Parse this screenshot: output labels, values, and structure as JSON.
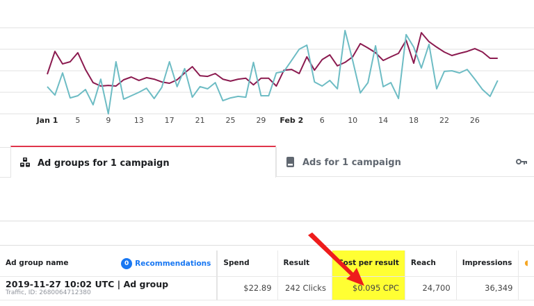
{
  "chart_data": {
    "type": "line",
    "title": "",
    "xlabel": "",
    "ylabel": "",
    "x_tick_labels": [
      "Jan 1",
      "5",
      "9",
      "13",
      "17",
      "21",
      "25",
      "29",
      "Feb 2",
      "6",
      "10",
      "14",
      "18",
      "22",
      "26"
    ],
    "bold_ticks": [
      "Jan 1",
      "Feb 2"
    ],
    "x_start": "Jan 1",
    "days": 60,
    "grid": true,
    "gridline_count": 5,
    "ylim": [
      0,
      4
    ],
    "series": [
      {
        "name": "series-purple",
        "color": "#8b1a4f",
        "values": [
          1.84,
          2.9,
          2.32,
          2.42,
          2.84,
          2.06,
          1.45,
          1.29,
          1.32,
          1.29,
          1.58,
          1.71,
          1.55,
          1.68,
          1.61,
          1.48,
          1.42,
          1.58,
          1.9,
          2.19,
          1.77,
          1.74,
          1.87,
          1.61,
          1.52,
          1.61,
          1.65,
          1.35,
          1.65,
          1.65,
          1.29,
          2.03,
          2.06,
          1.87,
          2.65,
          2.03,
          2.52,
          2.74,
          2.23,
          2.39,
          2.65,
          3.26,
          3.06,
          2.84,
          2.48,
          2.65,
          2.81,
          3.42,
          2.35,
          3.77,
          3.35,
          3.1,
          2.87,
          2.71,
          2.81,
          2.9,
          3.03,
          2.87,
          2.58,
          2.58
        ]
      },
      {
        "name": "series-teal",
        "color": "#6dbcc4",
        "values": [
          1.26,
          0.87,
          1.9,
          0.74,
          0.84,
          1.13,
          0.42,
          1.61,
          0.0,
          2.42,
          0.68,
          0.84,
          1.0,
          1.19,
          0.71,
          1.23,
          2.42,
          1.26,
          2.1,
          0.77,
          1.26,
          1.16,
          1.45,
          0.61,
          0.74,
          0.81,
          0.77,
          2.39,
          0.84,
          0.84,
          1.9,
          1.97,
          2.48,
          3.0,
          3.19,
          1.48,
          1.29,
          1.55,
          1.16,
          3.87,
          2.48,
          0.97,
          1.45,
          3.16,
          1.26,
          1.45,
          0.71,
          3.68,
          3.1,
          2.13,
          3.23,
          1.16,
          1.97,
          2.0,
          1.9,
          2.06,
          1.61,
          1.13,
          0.81,
          1.55
        ]
      }
    ]
  },
  "tabs": [
    {
      "label": "Ad groups for 1 campaign",
      "icon": "ad-groups-icon",
      "active": true
    },
    {
      "label": "Ads for 1 campaign",
      "icon": "ad-icon",
      "active": false
    }
  ],
  "toolbar": {
    "extra_icon": "key-icon"
  },
  "table": {
    "recommendations": {
      "count": "0",
      "label": "Recommendations"
    },
    "columns": [
      "Ad group name",
      "Spend",
      "Result",
      "Cost per result",
      "Reach",
      "Impressions"
    ],
    "highlighted_column": "Cost per result",
    "rows": [
      {
        "name": "2019-11-27 10:02 UTC | Ad group",
        "subtitle": "Traffic, ID: 2680064712380",
        "spend": "$22.89",
        "result": "242 Clicks",
        "cost_per_result": "$0.095 CPC",
        "reach": "24,700",
        "impressions": "36,349"
      }
    ]
  },
  "annotation": {
    "type": "arrow",
    "color": "#ee1c1c",
    "points_to": "Cost per result"
  }
}
